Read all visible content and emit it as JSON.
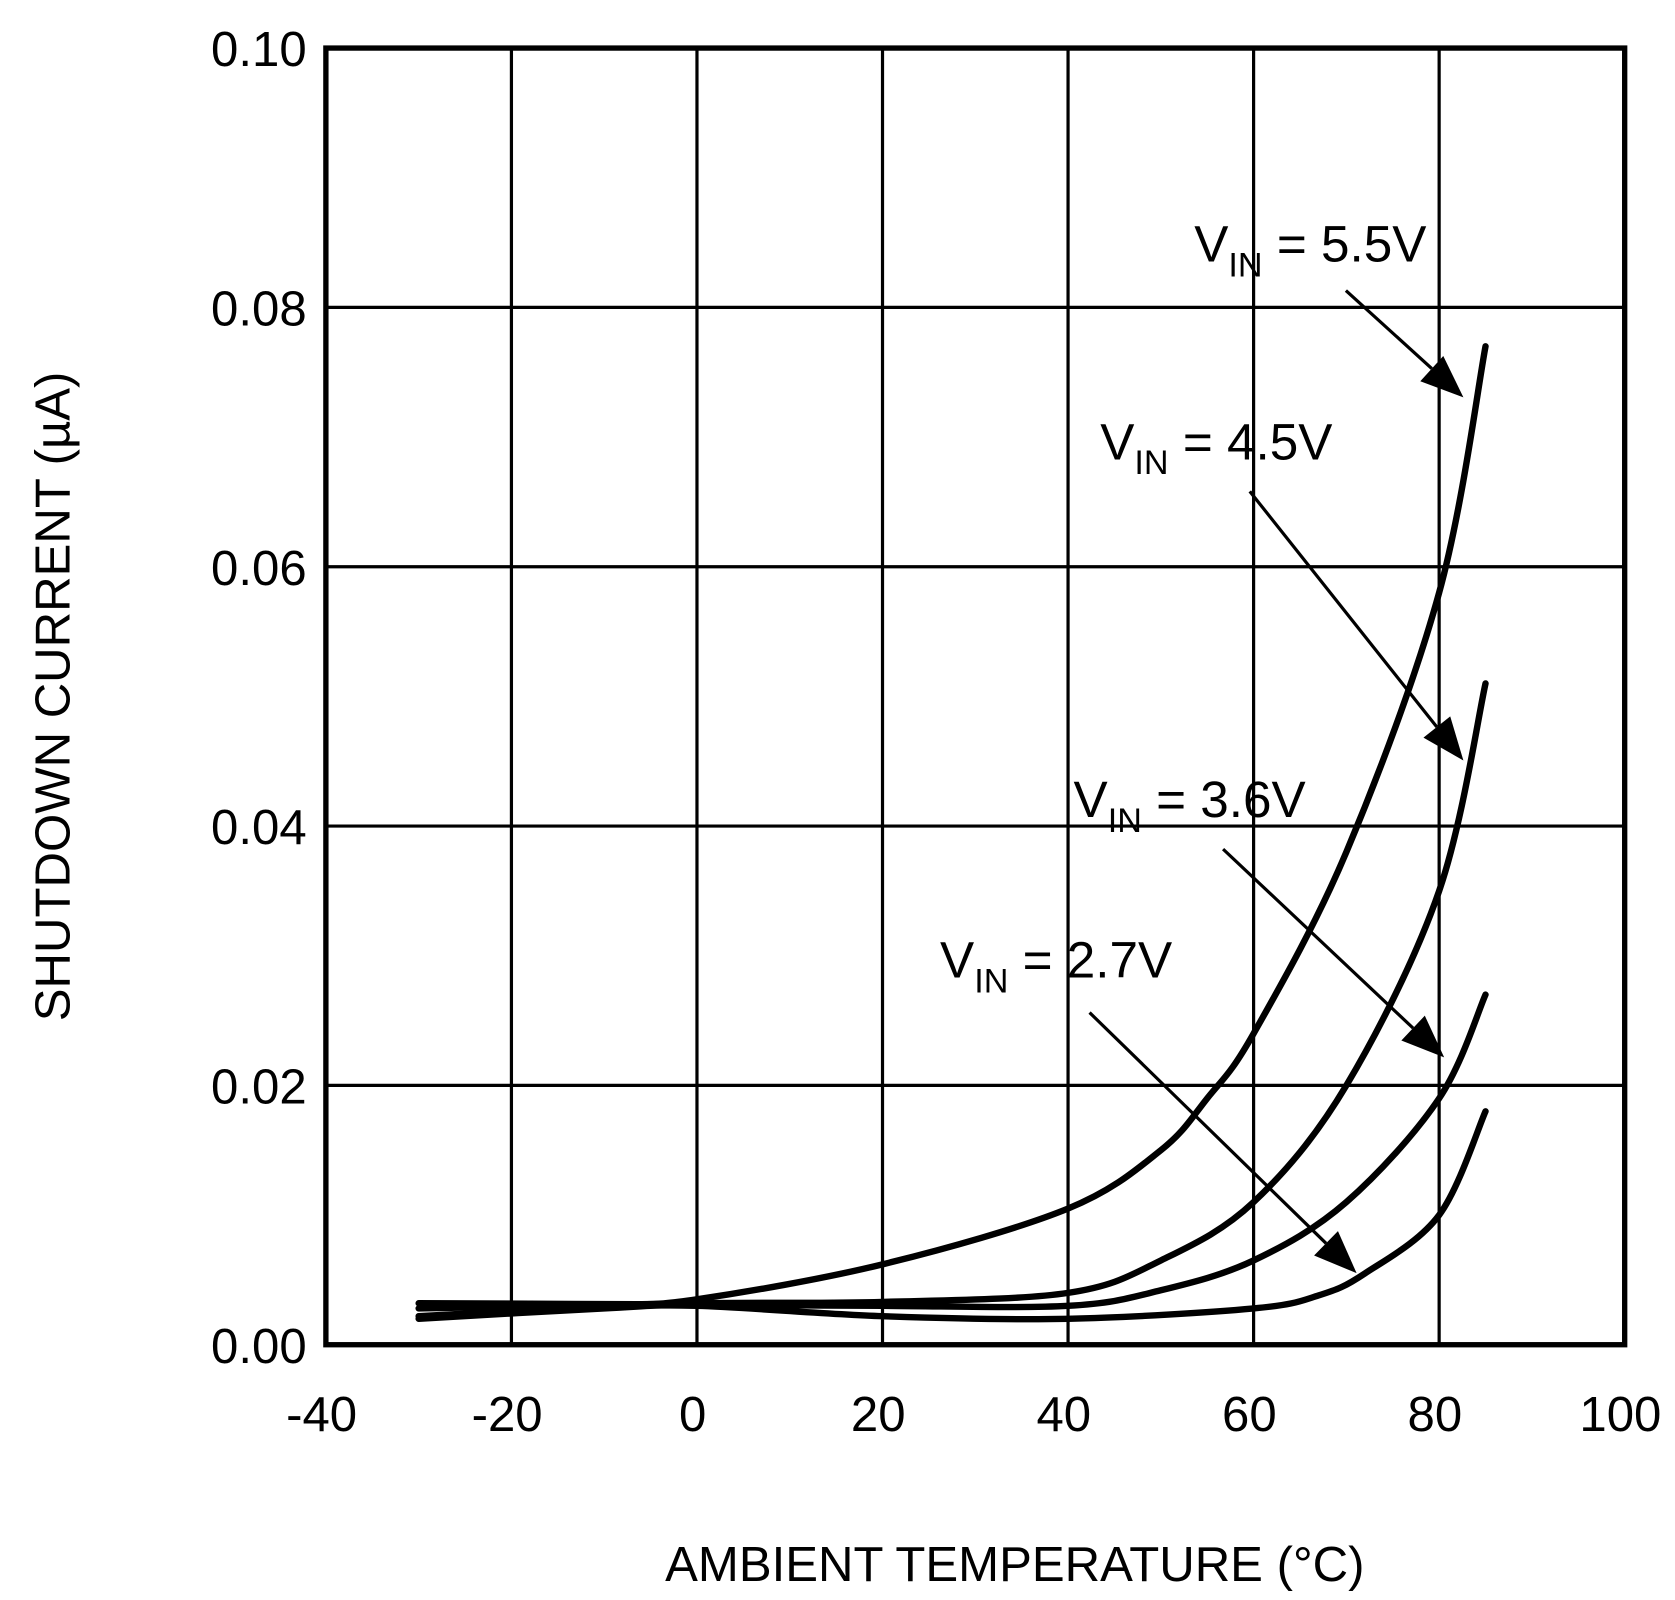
{
  "chart_data": {
    "type": "line",
    "title": "",
    "xlabel": "AMBIENT TEMPERATURE (°C)",
    "ylabel": "SHUTDOWN CURRENT (µA)",
    "xlim": [
      -40,
      100
    ],
    "ylim": [
      0,
      0.1
    ],
    "xticks": [
      "-40",
      "-20",
      "0",
      "20",
      "40",
      "60",
      "80",
      "100"
    ],
    "yticks": [
      "0.00",
      "0.02",
      "0.04",
      "0.06",
      "0.08",
      "0.10"
    ],
    "grid": true,
    "series": [
      {
        "name": "VIN = 5.5V",
        "label_main": "V",
        "label_sub": "IN",
        "label_rest": " = 5.5V",
        "x": [
          -30,
          -10,
          0,
          20,
          40,
          50,
          55,
          60,
          70,
          80,
          85
        ],
        "y": [
          0.0022,
          0.003,
          0.0035,
          0.0062,
          0.0105,
          0.015,
          0.019,
          0.024,
          0.038,
          0.058,
          0.077
        ]
      },
      {
        "name": "VIN = 4.5V",
        "label_main": "V",
        "label_sub": "IN",
        "label_rest": " = 4.5V",
        "x": [
          -30,
          0,
          20,
          40,
          50,
          60,
          70,
          80,
          85
        ],
        "y": [
          0.0028,
          0.0032,
          0.0033,
          0.004,
          0.0065,
          0.011,
          0.02,
          0.035,
          0.051
        ]
      },
      {
        "name": "VIN = 3.6V",
        "label_main": "V",
        "label_sub": "IN",
        "label_rest": " = 3.6V",
        "x": [
          -30,
          0,
          20,
          40,
          50,
          60,
          70,
          80,
          85
        ],
        "y": [
          0.0032,
          0.0031,
          0.003,
          0.003,
          0.0042,
          0.0065,
          0.011,
          0.019,
          0.027
        ]
      },
      {
        "name": "VIN = 2.7V",
        "label_main": "V",
        "label_sub": "IN",
        "label_rest": " = 2.7V",
        "x": [
          -30,
          -10,
          0,
          20,
          40,
          60,
          67,
          72,
          80,
          85
        ],
        "y": [
          0.002,
          0.0028,
          0.003,
          0.0022,
          0.002,
          0.0028,
          0.0038,
          0.0055,
          0.01,
          0.018
        ]
      }
    ]
  }
}
